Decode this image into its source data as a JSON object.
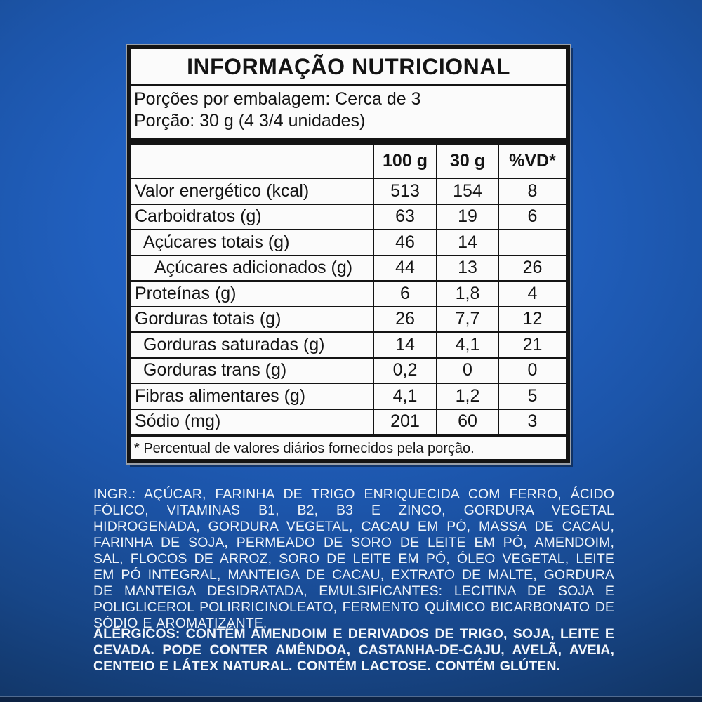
{
  "colors": {
    "background_center_blue": "#2565c8",
    "background_edge_blue": "#0f2d58",
    "bottom_strip": "#0d2344",
    "panel_background": "#fbfbfb",
    "panel_border": "#141414",
    "light_text": "#eef3f8"
  },
  "table": {
    "title": "INFORMAÇÃO NUTRICIONAL",
    "servings_line": "Porções por embalagem: Cerca de 3",
    "portion_line": "Porção: 30 g (4 3/4 unidades)",
    "columns": [
      "100 g",
      "30 g",
      "%VD*"
    ],
    "rows": [
      {
        "label": "Valor energético (kcal)",
        "indent": 0,
        "per100": "513",
        "per30": "154",
        "vd": "8"
      },
      {
        "label": "Carboidratos (g)",
        "indent": 0,
        "per100": "63",
        "per30": "19",
        "vd": "6"
      },
      {
        "label": "Açúcares totais (g)",
        "indent": 1,
        "per100": "46",
        "per30": "14",
        "vd": ""
      },
      {
        "label": "Açúcares adicionados (g)",
        "indent": 2,
        "per100": "44",
        "per30": "13",
        "vd": "26"
      },
      {
        "label": "Proteínas (g)",
        "indent": 0,
        "per100": "6",
        "per30": "1,8",
        "vd": "4"
      },
      {
        "label": "Gorduras totais (g)",
        "indent": 0,
        "per100": "26",
        "per30": "7,7",
        "vd": "12"
      },
      {
        "label": "Gorduras saturadas (g)",
        "indent": 1,
        "per100": "14",
        "per30": "4,1",
        "vd": "21"
      },
      {
        "label": "Gorduras trans (g)",
        "indent": 1,
        "per100": "0,2",
        "per30": "0",
        "vd": "0"
      },
      {
        "label": "Fibras alimentares (g)",
        "indent": 0,
        "per100": "4,1",
        "per30": "1,2",
        "vd": "5"
      },
      {
        "label": "Sódio (mg)",
        "indent": 0,
        "per100": "201",
        "per30": "60",
        "vd": "3"
      }
    ],
    "footnote": "* Percentual de valores diários fornecidos pela porção."
  },
  "ingredients_text": "INGR.: AÇÚCAR, FARINHA DE TRIGO ENRIQUECIDA COM FERRO, ÁCIDO FÓLICO, VITAMINAS B1, B2, B3 E ZINCO, GORDURA VEGETAL HIDROGENADA, GORDURA VEGETAL, CACAU EM PÓ, MASSA DE CACAU, FARINHA DE SOJA, PERMEADO DE SORO DE LEITE EM PÓ, AMENDOIM, SAL, FLOCOS DE ARROZ, SORO DE LEITE EM PÓ, ÓLEO VEGETAL, LEITE EM PÓ INTEGRAL, MANTEIGA DE CACAU, EXTRATO DE MALTE, GORDURA DE MANTEIGA DESIDRATADA, EMULSIFICANTES: LECITINA DE SOJA E POLIGLICEROL POLIRRICINOLEATO, FERMENTO QUÍMICO BICARBONATO DE SÓDIO E AROMATIZANTE.",
  "allergens_text": "ALÉRGICOS: CONTÉM AMENDOIM E DERIVADOS DE TRIGO, SOJA, LEITE E CEVADA. PODE CONTER AMÊNDOA, CASTANHA-DE-CAJU, AVELÃ, AVEIA, CENTEIO E LÁTEX NATURAL. CONTÉM LACTOSE. CONTÉM GLÚTEN."
}
